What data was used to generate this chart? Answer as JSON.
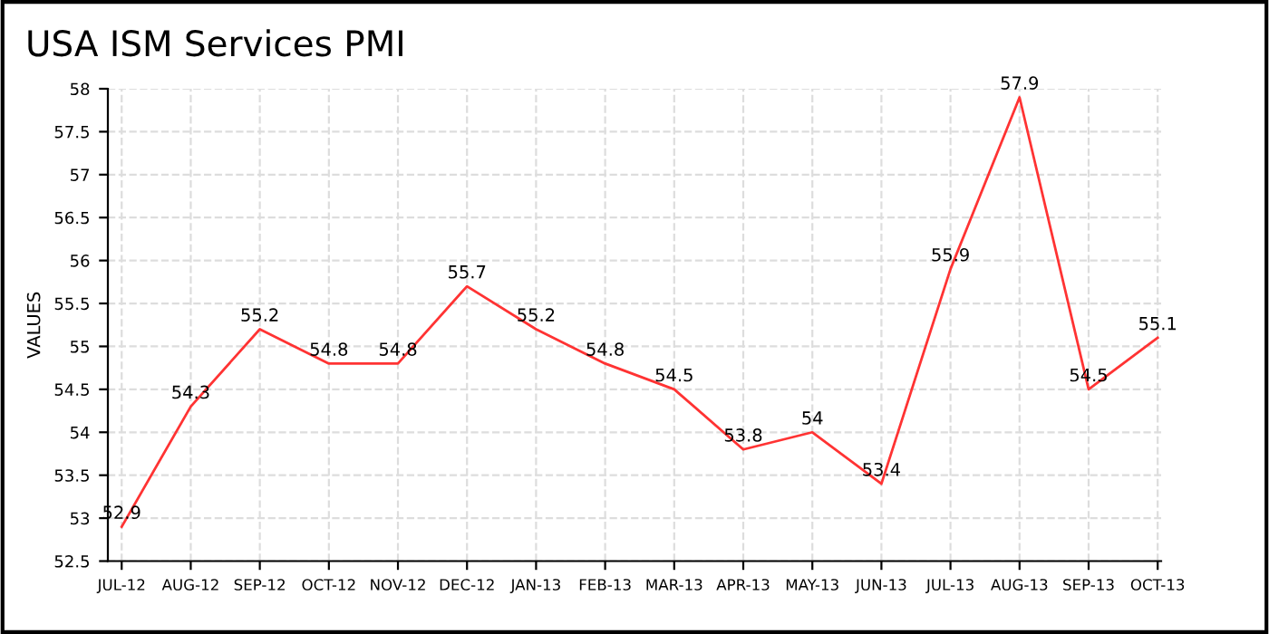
{
  "chart_data": {
    "type": "line",
    "title": "USA ISM Services PMI",
    "ylabel": "VALUES",
    "categories": [
      "JUL-12",
      "AUG-12",
      "SEP-12",
      "OCT-12",
      "NOV-12",
      "DEC-12",
      "JAN-13",
      "FEB-13",
      "MAR-13",
      "APR-13",
      "MAY-13",
      "JUN-13",
      "JUL-13",
      "AUG-13",
      "SEP-13",
      "OCT-13"
    ],
    "series": [
      {
        "color": "#ff3333",
        "values": [
          52.9,
          54.3,
          55.2,
          54.8,
          54.8,
          55.7,
          55.2,
          54.8,
          54.5,
          53.8,
          54,
          53.4,
          55.9,
          57.9,
          54.5,
          55.1
        ]
      }
    ],
    "ylim": [
      52.5,
      58
    ],
    "yticks": [
      52.5,
      53,
      53.5,
      54,
      54.5,
      55,
      55.5,
      56,
      56.5,
      57,
      57.5,
      58
    ],
    "grid": true,
    "data_labels": true,
    "marker": "none",
    "line_style": "solid"
  }
}
